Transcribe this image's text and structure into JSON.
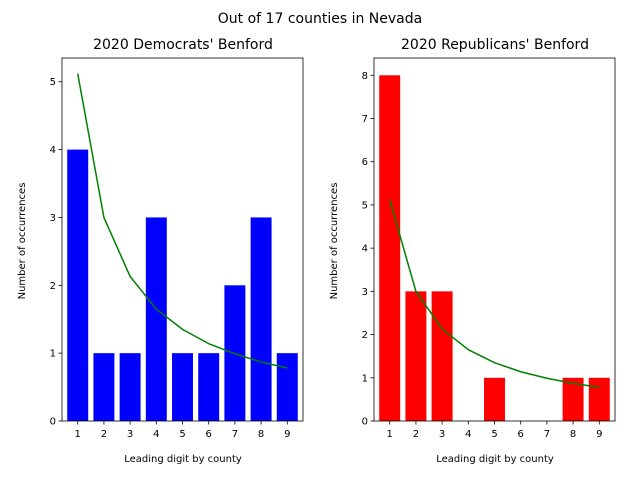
{
  "figure": {
    "suptitle": "Out of 17 counties in Nevada"
  },
  "chart_data": [
    {
      "type": "bar",
      "title": "2020 Democrats' Benford",
      "xlabel": "Leading digit by county",
      "ylabel": "Number of occurrences",
      "categories": [
        "1",
        "2",
        "3",
        "4",
        "5",
        "6",
        "7",
        "8",
        "9"
      ],
      "ylim": [
        0,
        5.35
      ],
      "yticks": [
        0,
        1,
        2,
        3,
        4,
        5
      ],
      "series": [
        {
          "type": "bar",
          "color": "#0000ff",
          "values": [
            4,
            1,
            1,
            3,
            1,
            1,
            2,
            3,
            1
          ]
        },
        {
          "type": "line",
          "color": "#008000",
          "values": [
            5.12,
            3.0,
            2.13,
            1.65,
            1.35,
            1.14,
            0.99,
            0.87,
            0.78
          ]
        }
      ],
      "grid": false
    },
    {
      "type": "bar",
      "title": "2020 Republicans' Benford",
      "xlabel": "Leading digit by county",
      "ylabel": "Number of occurrences",
      "categories": [
        "1",
        "2",
        "3",
        "4",
        "5",
        "6",
        "7",
        "8",
        "9"
      ],
      "ylim": [
        0,
        8.4
      ],
      "yticks": [
        0,
        1,
        2,
        3,
        4,
        5,
        6,
        7,
        8
      ],
      "series": [
        {
          "type": "bar",
          "color": "#ff0000",
          "values": [
            8,
            3,
            3,
            0,
            1,
            0,
            0,
            1,
            1
          ]
        },
        {
          "type": "line",
          "color": "#008000",
          "values": [
            5.12,
            3.0,
            2.13,
            1.65,
            1.35,
            1.14,
            0.99,
            0.87,
            0.78
          ]
        }
      ],
      "grid": false
    }
  ]
}
